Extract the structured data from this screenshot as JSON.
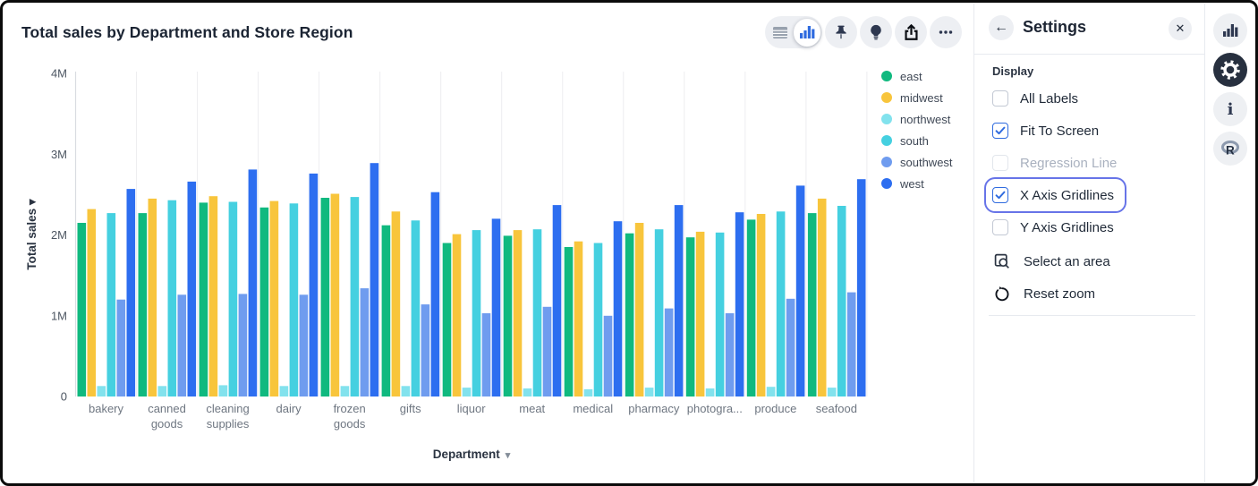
{
  "header": {
    "title": "Total sales by Department and Store Region"
  },
  "toolbar": {
    "view_toggle": {
      "options": [
        "table-view-icon",
        "bar-chart-view-icon"
      ],
      "selected": "bar-chart-view-icon"
    },
    "buttons": [
      {
        "icon": "pin-icon"
      },
      {
        "icon": "lightbulb-icon"
      },
      {
        "icon": "share-icon"
      },
      {
        "icon": "ellipsis-icon"
      }
    ]
  },
  "chart_data": {
    "type": "bar",
    "title": "Total sales by Department and Store Region",
    "xlabel": "Department",
    "ylabel": "Total sales",
    "values_unit": "M",
    "ylim": [
      0,
      4
    ],
    "yticks": [
      "0",
      "1M",
      "2M",
      "3M",
      "4M"
    ],
    "x_gridlines": true,
    "y_gridlines": false,
    "legend_position": "right",
    "categories": [
      "bakery",
      "canned goods",
      "cleaning supplies",
      "dairy",
      "frozen goods",
      "gifts",
      "liquor",
      "meat",
      "medical",
      "pharmacy",
      "photogra...",
      "produce",
      "seafood"
    ],
    "series": [
      {
        "name": "east",
        "color": "#10B97F",
        "values": [
          2.15,
          2.27,
          2.4,
          2.34,
          2.46,
          2.12,
          1.9,
          1.99,
          1.85,
          2.02,
          1.97,
          2.19,
          2.27
        ]
      },
      {
        "name": "midwest",
        "color": "#F8C53C",
        "values": [
          2.32,
          2.45,
          2.48,
          2.42,
          2.51,
          2.29,
          2.01,
          2.06,
          1.92,
          2.15,
          2.04,
          2.26,
          2.45
        ]
      },
      {
        "name": "northwest",
        "color": "#82E2ED",
        "values": [
          0.13,
          0.13,
          0.14,
          0.13,
          0.13,
          0.13,
          0.11,
          0.1,
          0.09,
          0.11,
          0.1,
          0.12,
          0.11
        ]
      },
      {
        "name": "south",
        "color": "#45D0E0",
        "values": [
          2.27,
          2.43,
          2.41,
          2.39,
          2.47,
          2.18,
          2.06,
          2.07,
          1.9,
          2.07,
          2.03,
          2.29,
          2.36
        ]
      },
      {
        "name": "southwest",
        "color": "#6F9CEF",
        "values": [
          1.2,
          1.26,
          1.27,
          1.26,
          1.34,
          1.14,
          1.03,
          1.11,
          1.0,
          1.09,
          1.03,
          1.21,
          1.29
        ]
      },
      {
        "name": "west",
        "color": "#2D6EF0",
        "values": [
          2.57,
          2.66,
          2.81,
          2.76,
          2.89,
          2.53,
          2.2,
          2.37,
          2.17,
          2.37,
          2.28,
          2.61,
          2.69
        ]
      }
    ]
  },
  "settings": {
    "title": "Settings",
    "section": "Display",
    "header_icons": {
      "back": "back-arrow-icon",
      "close": "close-icon"
    },
    "checkboxes": [
      {
        "label": "All Labels",
        "checked": false,
        "disabled": false,
        "focused": false
      },
      {
        "label": "Fit To Screen",
        "checked": true,
        "disabled": false,
        "focused": false
      },
      {
        "label": "Regression Line",
        "checked": false,
        "disabled": true,
        "focused": false
      },
      {
        "label": "X Axis Gridlines",
        "checked": true,
        "disabled": false,
        "focused": true
      },
      {
        "label": "Y Axis Gridlines",
        "checked": false,
        "disabled": false,
        "focused": false
      }
    ],
    "actions": [
      {
        "label": "Select an area",
        "icon": "select-area-icon"
      },
      {
        "label": "Reset zoom",
        "icon": "reset-zoom-icon"
      }
    ]
  },
  "right_rail": {
    "buttons": [
      {
        "icon": "bar-chart-icon",
        "active": false
      },
      {
        "icon": "gear-icon",
        "active": true
      },
      {
        "icon": "info-icon",
        "active": false
      },
      {
        "icon": "r-logo-icon",
        "active": false
      }
    ]
  },
  "colors": {
    "accent_blue": "#2F6BDF",
    "focus_ring": "#6774E8",
    "gridline": "#ededf0",
    "axis_line": "#d9dce1",
    "tick_text": "#6e7681",
    "icon_dark": "#2E3850",
    "button_bg": "#EDEFF3"
  }
}
